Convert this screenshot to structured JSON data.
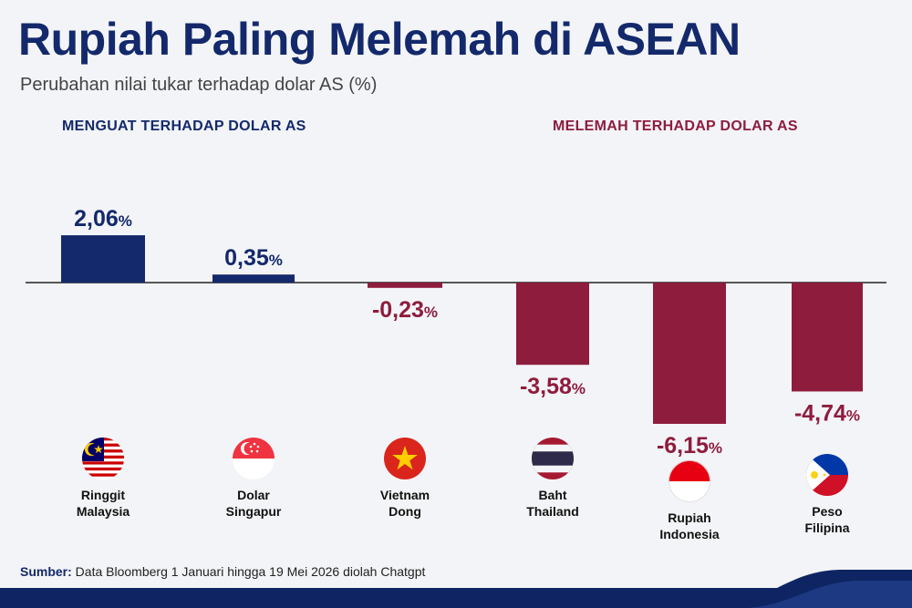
{
  "title": "Rupiah Paling Melemah di ASEAN",
  "subtitle": "Perubahan nilai tukar terhadap dolar AS (%)",
  "section_labels": {
    "up": "MENGUAT TERHADAP DOLAR AS",
    "down": "MELEMAH TERHADAP DOLAR AS"
  },
  "colors": {
    "positive": "#13296b",
    "negative": "#8e1c3d",
    "axis": "#222222"
  },
  "chart_data": {
    "type": "bar",
    "categories": [
      "Ringgit Malaysia",
      "Dolar Singapur",
      "Vietnam Dong",
      "Baht Thailand",
      "Rupiah Indonesia",
      "Peso Filipina"
    ],
    "values": [
      2.06,
      0.35,
      -0.23,
      -3.58,
      -6.15,
      -4.74
    ],
    "value_labels": [
      "2,06",
      "0,35",
      "-0,23",
      "-3,58",
      "-6,15",
      "-4,74"
    ],
    "unit": "%",
    "title": "Rupiah Paling Melemah di ASEAN",
    "xlabel": "",
    "ylabel": "",
    "grid": false
  },
  "currencies": [
    {
      "line1": "Ringgit",
      "line2": "Malaysia",
      "flag": "malaysia-flag-icon"
    },
    {
      "line1": "Dolar",
      "line2": "Singapur",
      "flag": "singapore-flag-icon"
    },
    {
      "line1": "Vietnam",
      "line2": "Dong",
      "flag": "vietnam-flag-icon"
    },
    {
      "line1": "Baht",
      "line2": "Thailand",
      "flag": "thailand-flag-icon"
    },
    {
      "line1": "Rupiah",
      "line2": "Indonesia",
      "flag": "indonesia-flag-icon"
    },
    {
      "line1": "Peso",
      "line2": "Filipina",
      "flag": "philippines-flag-icon"
    }
  ],
  "footer": {
    "source_label": "Sumber:",
    "source_text": " Data Bloomberg 1 Januari hingga 19 Mei 2026 diolah Chatgpt"
  }
}
